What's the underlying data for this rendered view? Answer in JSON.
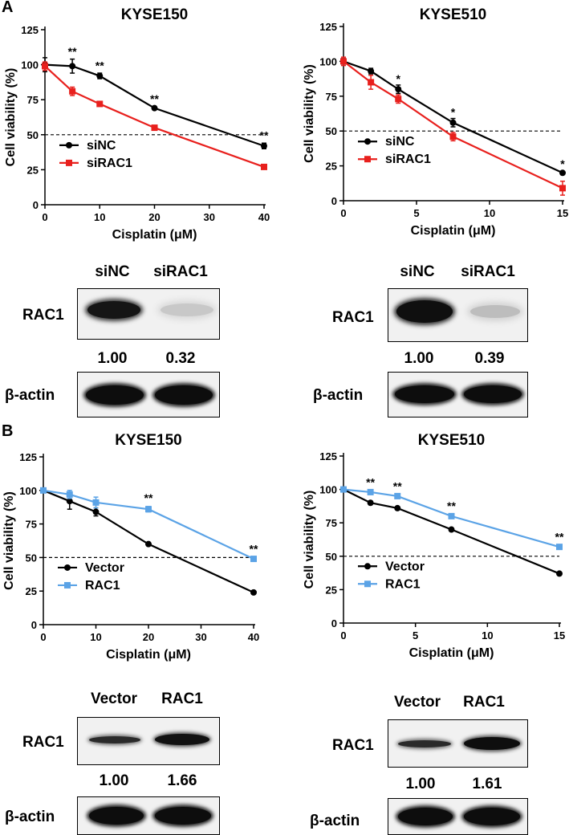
{
  "panels": [
    {
      "letter": "A"
    },
    {
      "letter": "B"
    }
  ],
  "chart_data": [
    {
      "type": "line",
      "title": "KYSE150",
      "xlabel": "Cisplatin (μM)",
      "ylabel": "Cell viability (%)",
      "xlim": [
        0,
        40
      ],
      "ylim": [
        0,
        125
      ],
      "xticks": [
        0,
        10,
        20,
        30,
        40
      ],
      "yticks": [
        0,
        25,
        50,
        75,
        100,
        125
      ],
      "reference_line": 50,
      "legend_position": "lower-left",
      "x": [
        0,
        5,
        10,
        20,
        40
      ],
      "series": [
        {
          "name": "siNC",
          "color": "#000000",
          "marker": "circle",
          "values": [
            100,
            99,
            92,
            69,
            42
          ],
          "errors": [
            5,
            5,
            2,
            1,
            2
          ]
        },
        {
          "name": "siRAC1",
          "color": "#e8201d",
          "marker": "square",
          "values": [
            99,
            81,
            72,
            55,
            27
          ],
          "errors": [
            3,
            3,
            1,
            1,
            1
          ]
        }
      ],
      "annotations": [
        {
          "x": 5,
          "y": 109,
          "text": "**"
        },
        {
          "x": 10,
          "y": 99,
          "text": "**"
        },
        {
          "x": 20,
          "y": 75,
          "text": "**"
        },
        {
          "x": 40,
          "y": 49,
          "text": "**"
        }
      ]
    },
    {
      "type": "line",
      "title": "KYSE510",
      "xlabel": "Cisplatin (μM)",
      "ylabel": "Cell viability (%)",
      "xlim": [
        0,
        15
      ],
      "ylim": [
        0,
        125
      ],
      "xticks": [
        0,
        5,
        10,
        15
      ],
      "yticks": [
        0,
        25,
        50,
        75,
        100,
        125
      ],
      "reference_line": 50,
      "legend_position": "lower-left",
      "x": [
        0,
        1.875,
        3.75,
        7.5,
        15
      ],
      "series": [
        {
          "name": "siNC",
          "color": "#000000",
          "marker": "circle",
          "values": [
            100,
            93,
            80,
            56,
            20
          ],
          "errors": [
            2,
            2,
            3,
            3,
            1
          ]
        },
        {
          "name": "siRAC1",
          "color": "#e8201d",
          "marker": "square",
          "values": [
            100,
            85,
            73,
            46,
            9
          ],
          "errors": [
            3,
            5,
            3,
            3,
            5
          ]
        }
      ],
      "annotations": [
        {
          "x": 3.75,
          "y": 87,
          "text": "*"
        },
        {
          "x": 7.5,
          "y": 63,
          "text": "*"
        },
        {
          "x": 15,
          "y": 26,
          "text": "*"
        }
      ]
    },
    {
      "type": "line",
      "title": "KYSE150",
      "xlabel": "Cisplatin (μM)",
      "ylabel": "Cell viability (%)",
      "xlim": [
        0,
        40
      ],
      "ylim": [
        0,
        125
      ],
      "xticks": [
        0,
        10,
        20,
        30,
        40
      ],
      "yticks": [
        0,
        25,
        50,
        75,
        100,
        125
      ],
      "reference_line": 50,
      "legend_position": "lower-left",
      "x": [
        0,
        5,
        10,
        20,
        40
      ],
      "series": [
        {
          "name": "Vector",
          "color": "#000000",
          "marker": "circle",
          "values": [
            100,
            92,
            84,
            60,
            24
          ],
          "errors": [
            1,
            6,
            3,
            1,
            1
          ]
        },
        {
          "name": "RAC1",
          "color": "#5ba3e6",
          "marker": "square",
          "values": [
            100,
            97,
            91,
            86,
            49
          ],
          "errors": [
            1,
            3,
            4,
            2,
            1
          ]
        }
      ],
      "annotations": [
        {
          "x": 20,
          "y": 94,
          "text": "**"
        },
        {
          "x": 40,
          "y": 56,
          "text": "**"
        }
      ]
    },
    {
      "type": "line",
      "title": "KYSE510",
      "xlabel": "Cisplatin (μM)",
      "ylabel": "Cell viability (%)",
      "xlim": [
        0,
        15
      ],
      "ylim": [
        0,
        125
      ],
      "xticks": [
        0,
        5,
        10,
        15
      ],
      "yticks": [
        0,
        25,
        50,
        75,
        100,
        125
      ],
      "reference_line": 50,
      "legend_position": "lower-left",
      "x": [
        0,
        1.875,
        3.75,
        7.5,
        15
      ],
      "series": [
        {
          "name": "Vector",
          "color": "#000000",
          "marker": "circle",
          "values": [
            100,
            90,
            86,
            70,
            37
          ],
          "errors": [
            1,
            1,
            1,
            1,
            1
          ]
        },
        {
          "name": "RAC1",
          "color": "#5ba3e6",
          "marker": "square",
          "values": [
            100,
            98,
            95,
            80,
            57
          ],
          "errors": [
            1,
            1,
            1,
            1,
            1
          ]
        }
      ],
      "annotations": [
        {
          "x": 1.875,
          "y": 105,
          "text": "**"
        },
        {
          "x": 3.75,
          "y": 102,
          "text": "**"
        },
        {
          "x": 7.5,
          "y": 87,
          "text": "**"
        },
        {
          "x": 15,
          "y": 64,
          "text": "**"
        }
      ]
    }
  ],
  "blots": [
    {
      "lanes": [
        "siNC",
        "siRAC1"
      ],
      "target": "RAC1",
      "quant": [
        "1.00",
        "0.32"
      ],
      "loading": "β-actin"
    },
    {
      "lanes": [
        "siNC",
        "siRAC1"
      ],
      "target": "RAC1",
      "quant": [
        "1.00",
        "0.39"
      ],
      "loading": "β-actin"
    },
    {
      "lanes": [
        "Vector",
        "RAC1"
      ],
      "target": "RAC1",
      "quant": [
        "1.00",
        "1.66"
      ],
      "loading": "β-actin"
    },
    {
      "lanes": [
        "Vector",
        "RAC1"
      ],
      "target": "RAC1",
      "quant": [
        "1.00",
        "1.61"
      ],
      "loading": "β-actin"
    }
  ]
}
